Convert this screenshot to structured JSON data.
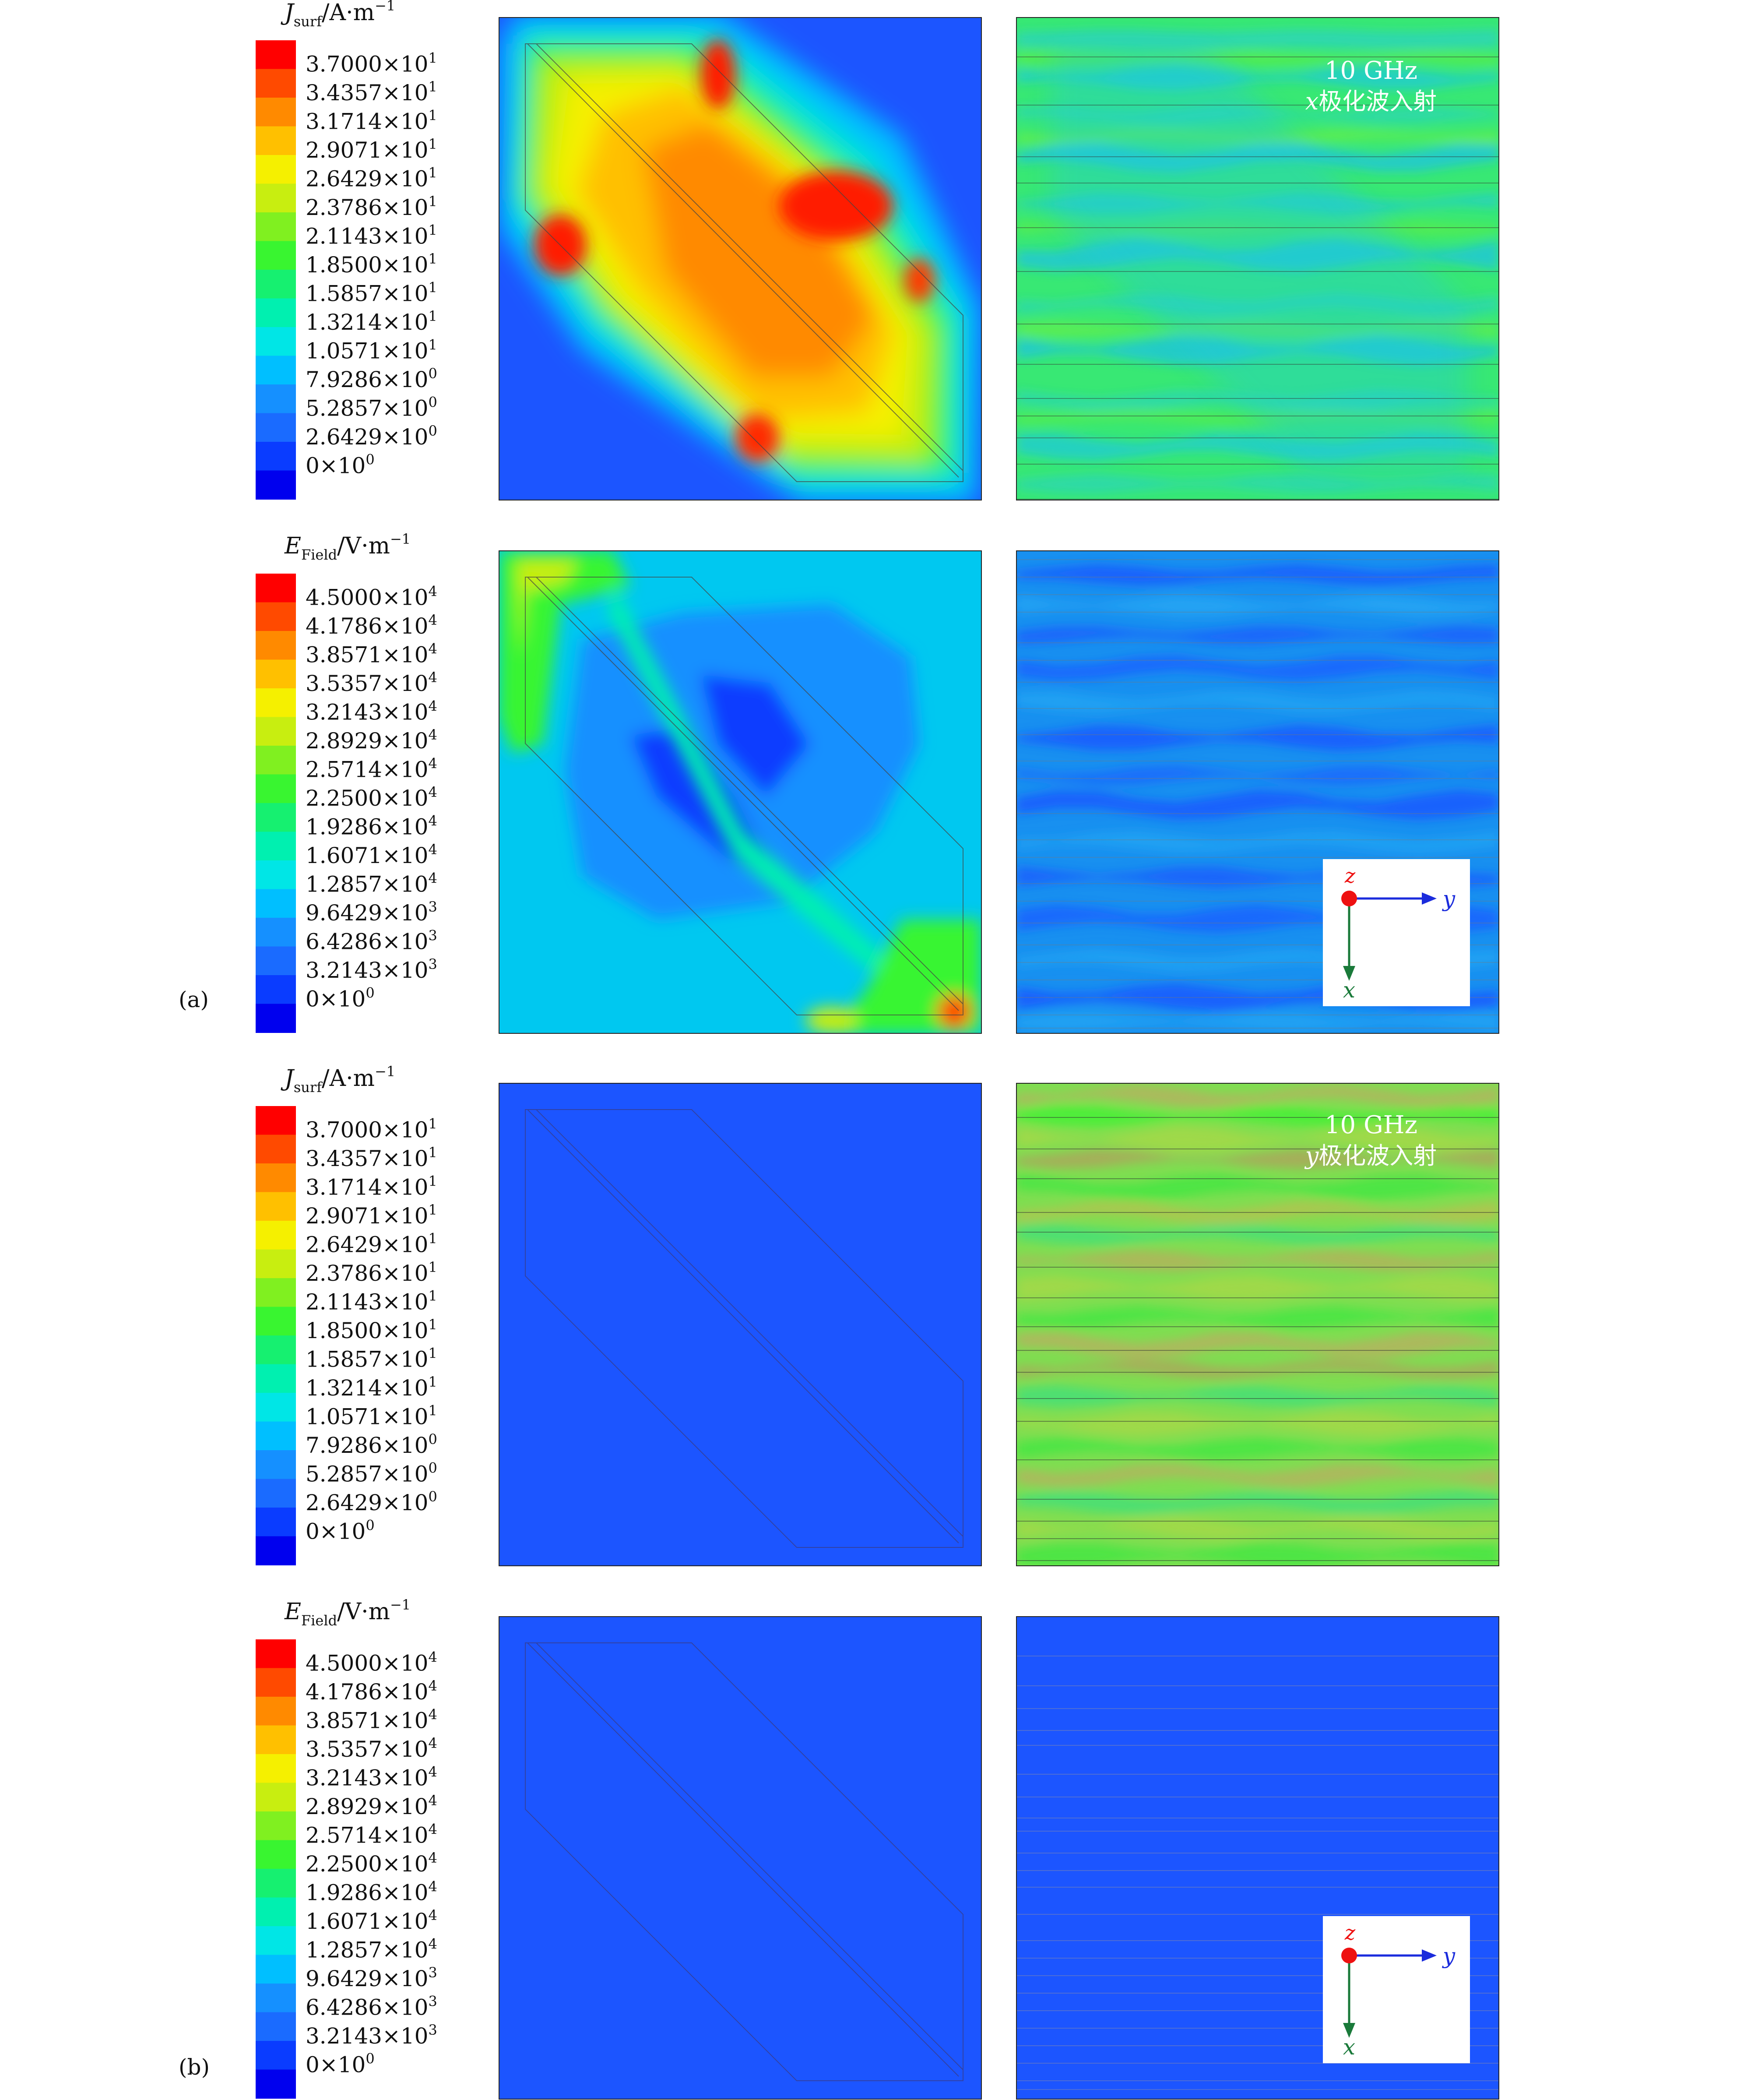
{
  "colors": {
    "scale": [
      "#0000ee",
      "#0a3cff",
      "#1a6bff",
      "#1590ff",
      "#00bfff",
      "#00e6e6",
      "#00f0b0",
      "#16f070",
      "#39f530",
      "#80f020",
      "#c8ee10",
      "#f5f000",
      "#ffc000",
      "#ff8a00",
      "#ff4a00",
      "#ff0000"
    ],
    "field_bg_blue": "#1c55ff",
    "axis_red": "#ee1111",
    "axis_blue": "#1b2cdc",
    "axis_green": "#1a7a3a"
  },
  "panel_labels": {
    "a": "(a)",
    "b": "(b)"
  },
  "legend_j": {
    "title_main": "J",
    "title_sub": "surf",
    "title_unit": "/A·m",
    "title_exp": "−1",
    "values": [
      {
        "m": "3.7000",
        "e": "1"
      },
      {
        "m": "3.4357",
        "e": "1"
      },
      {
        "m": "3.1714",
        "e": "1"
      },
      {
        "m": "2.9071",
        "e": "1"
      },
      {
        "m": "2.6429",
        "e": "1"
      },
      {
        "m": "2.3786",
        "e": "1"
      },
      {
        "m": "2.1143",
        "e": "1"
      },
      {
        "m": "1.8500",
        "e": "1"
      },
      {
        "m": "1.5857",
        "e": "1"
      },
      {
        "m": "1.3214",
        "e": "1"
      },
      {
        "m": "1.0571",
        "e": "1"
      },
      {
        "m": "7.9286",
        "e": "0"
      },
      {
        "m": "5.2857",
        "e": "0"
      },
      {
        "m": "2.6429",
        "e": "0"
      },
      {
        "m": "0",
        "e": "0"
      }
    ]
  },
  "legend_e": {
    "title_main": "E",
    "title_sub": "Field",
    "title_unit": "/V·m",
    "title_exp": "−1",
    "values": [
      {
        "m": "4.5000",
        "e": "4"
      },
      {
        "m": "4.1786",
        "e": "4"
      },
      {
        "m": "3.8571",
        "e": "4"
      },
      {
        "m": "3.5357",
        "e": "4"
      },
      {
        "m": "3.2143",
        "e": "4"
      },
      {
        "m": "2.8929",
        "e": "4"
      },
      {
        "m": "2.5714",
        "e": "4"
      },
      {
        "m": "2.2500",
        "e": "4"
      },
      {
        "m": "1.9286",
        "e": "4"
      },
      {
        "m": "1.6071",
        "e": "4"
      },
      {
        "m": "1.2857",
        "e": "4"
      },
      {
        "m": "9.6429",
        "e": "3"
      },
      {
        "m": "6.4286",
        "e": "3"
      },
      {
        "m": "3.2143",
        "e": "3"
      },
      {
        "m": "0",
        "e": "0"
      }
    ]
  },
  "annotations": {
    "freq": "10 GHz",
    "x_pol_var": "x",
    "y_pol_var": "y",
    "pol_text": "极化波入射"
  },
  "axes": {
    "z": "z",
    "y": "y",
    "x": "x"
  }
}
